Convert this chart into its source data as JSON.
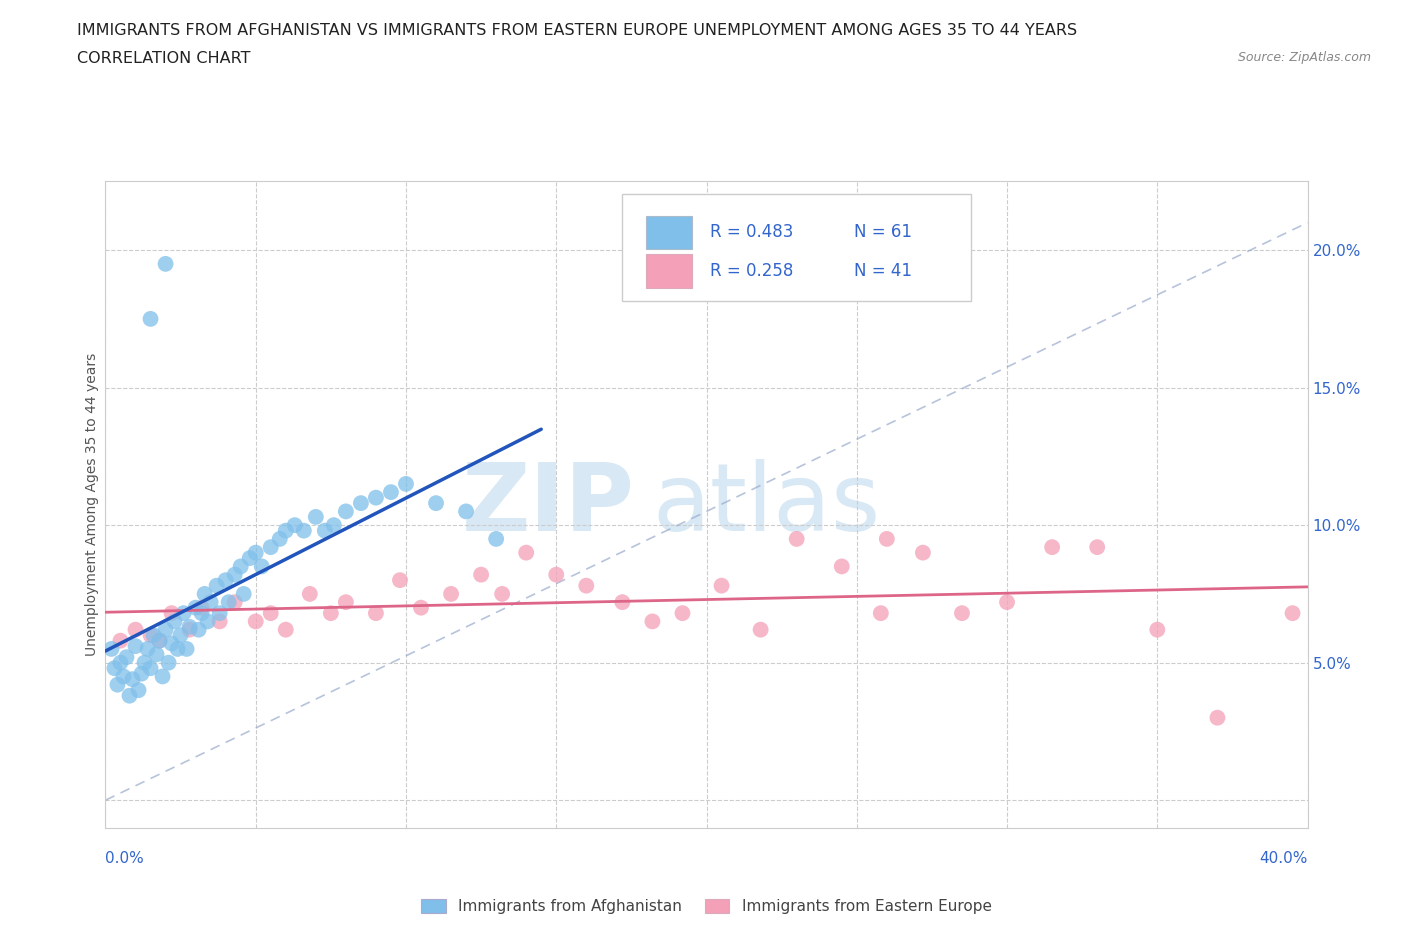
{
  "title_line1": "IMMIGRANTS FROM AFGHANISTAN VS IMMIGRANTS FROM EASTERN EUROPE UNEMPLOYMENT AMONG AGES 35 TO 44 YEARS",
  "title_line2": "CORRELATION CHART",
  "source_text": "Source: ZipAtlas.com",
  "ylabel": "Unemployment Among Ages 35 to 44 years",
  "xlim": [
    0.0,
    0.4
  ],
  "ylim": [
    -0.01,
    0.225
  ],
  "afg_color": "#7fbfea",
  "ee_color": "#f4a0b8",
  "afg_line_color": "#2255bb",
  "ee_line_color": "#dd6688",
  "diag_color": "#aabbdd",
  "afg_R": 0.483,
  "afg_N": 61,
  "ee_R": 0.258,
  "ee_N": 41,
  "legend_R_color": "#3366cc",
  "legend_N_color": "#333333",
  "afg_x": [
    0.002,
    0.003,
    0.004,
    0.005,
    0.006,
    0.007,
    0.008,
    0.009,
    0.01,
    0.011,
    0.012,
    0.013,
    0.014,
    0.015,
    0.016,
    0.017,
    0.018,
    0.019,
    0.02,
    0.021,
    0.022,
    0.023,
    0.024,
    0.025,
    0.026,
    0.027,
    0.028,
    0.03,
    0.031,
    0.032,
    0.033,
    0.034,
    0.035,
    0.037,
    0.038,
    0.04,
    0.041,
    0.043,
    0.045,
    0.046,
    0.048,
    0.05,
    0.052,
    0.055,
    0.058,
    0.06,
    0.063,
    0.066,
    0.07,
    0.073,
    0.076,
    0.08,
    0.085,
    0.09,
    0.095,
    0.1,
    0.11,
    0.12,
    0.13,
    0.015,
    0.02
  ],
  "afg_y": [
    0.055,
    0.048,
    0.042,
    0.05,
    0.045,
    0.052,
    0.038,
    0.044,
    0.056,
    0.04,
    0.046,
    0.05,
    0.055,
    0.048,
    0.06,
    0.053,
    0.058,
    0.045,
    0.062,
    0.05,
    0.057,
    0.065,
    0.055,
    0.06,
    0.068,
    0.055,
    0.063,
    0.07,
    0.062,
    0.068,
    0.075,
    0.065,
    0.072,
    0.078,
    0.068,
    0.08,
    0.072,
    0.082,
    0.085,
    0.075,
    0.088,
    0.09,
    0.085,
    0.092,
    0.095,
    0.098,
    0.1,
    0.098,
    0.103,
    0.098,
    0.1,
    0.105,
    0.108,
    0.11,
    0.112,
    0.115,
    0.108,
    0.105,
    0.095,
    0.175,
    0.195
  ],
  "ee_x": [
    0.005,
    0.01,
    0.015,
    0.018,
    0.022,
    0.028,
    0.032,
    0.038,
    0.043,
    0.05,
    0.055,
    0.06,
    0.068,
    0.075,
    0.08,
    0.09,
    0.098,
    0.105,
    0.115,
    0.125,
    0.132,
    0.14,
    0.15,
    0.16,
    0.172,
    0.182,
    0.192,
    0.205,
    0.218,
    0.23,
    0.245,
    0.258,
    0.272,
    0.285,
    0.3,
    0.315,
    0.33,
    0.35,
    0.37,
    0.26,
    0.395
  ],
  "ee_y": [
    0.058,
    0.062,
    0.06,
    0.058,
    0.068,
    0.062,
    0.07,
    0.065,
    0.072,
    0.065,
    0.068,
    0.062,
    0.075,
    0.068,
    0.072,
    0.068,
    0.08,
    0.07,
    0.075,
    0.082,
    0.075,
    0.09,
    0.082,
    0.078,
    0.072,
    0.065,
    0.068,
    0.078,
    0.062,
    0.095,
    0.085,
    0.068,
    0.09,
    0.068,
    0.072,
    0.092,
    0.092,
    0.062,
    0.03,
    0.095,
    0.068
  ]
}
